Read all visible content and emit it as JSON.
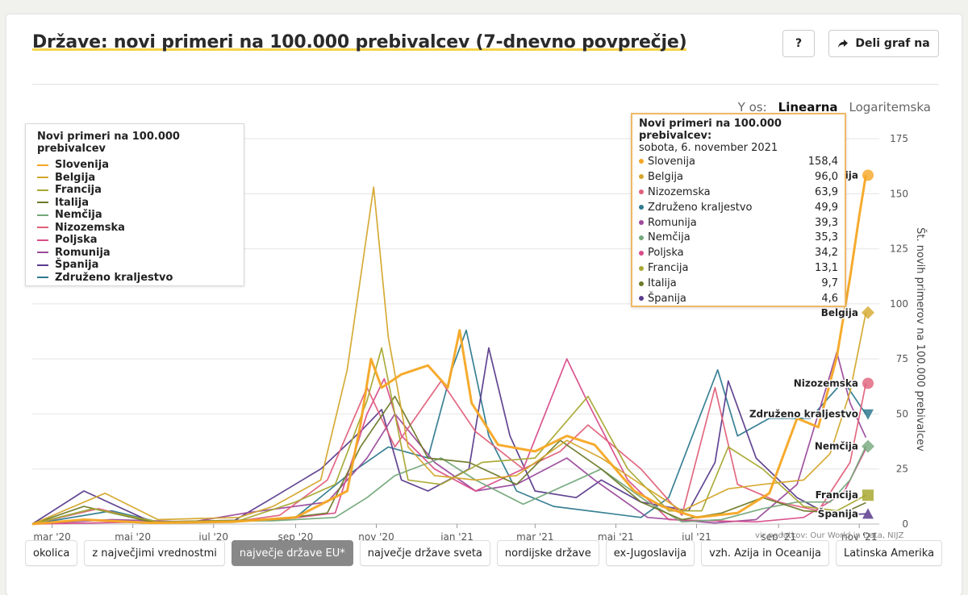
{
  "header": {
    "title": "Države: novi primeri na 100.000 prebivalcev (7-dnevno povprečje)",
    "help_label": "?",
    "share_label": "Deli graf na"
  },
  "yscale": {
    "label": "Y os:",
    "options": [
      "Linearna",
      "Logaritemska"
    ],
    "selected": "Linearna"
  },
  "legend": {
    "title": "Novi primeri na 100.000 prebivalcev",
    "items": [
      {
        "name": "Slovenija",
        "color": "#f5a623"
      },
      {
        "name": "Belgija",
        "color": "#d4a72c"
      },
      {
        "name": "Francija",
        "color": "#a8a833"
      },
      {
        "name": "Italija",
        "color": "#6f7a2a"
      },
      {
        "name": "Nemčija",
        "color": "#74a87a"
      },
      {
        "name": "Nizozemska",
        "color": "#e0607a"
      },
      {
        "name": "Poljska",
        "color": "#d84d8a"
      },
      {
        "name": "Romunija",
        "color": "#9b4a9c"
      },
      {
        "name": "Španija",
        "color": "#5a3b8c"
      },
      {
        "name": "Združeno kraljestvo",
        "color": "#2f7a8f"
      }
    ]
  },
  "tooltip": {
    "title": "Novi primeri na 100.000 prebivalcev:",
    "date": "sobota, 6. november 2021",
    "rows": [
      {
        "name": "Slovenija",
        "value": "158,4",
        "color": "#f5a623"
      },
      {
        "name": "Belgija",
        "value": "96,0",
        "color": "#d4a72c"
      },
      {
        "name": "Nizozemska",
        "value": "63,9",
        "color": "#e0607a"
      },
      {
        "name": "Združeno kraljestvo",
        "value": "49,9",
        "color": "#2f7a8f"
      },
      {
        "name": "Romunija",
        "value": "39,3",
        "color": "#9b4a9c"
      },
      {
        "name": "Nemčija",
        "value": "35,3",
        "color": "#74a87a"
      },
      {
        "name": "Poljska",
        "value": "34,2",
        "color": "#d84d8a"
      },
      {
        "name": "Francija",
        "value": "13,1",
        "color": "#a8a833"
      },
      {
        "name": "Italija",
        "value": "9,7",
        "color": "#6f7a2a"
      },
      {
        "name": "Španija",
        "value": "4,6",
        "color": "#5a3b8c"
      }
    ]
  },
  "source": "vir podatkov: Our World in Data, NIJZ",
  "chips": [
    "okolica",
    "z največjimi vrednostmi",
    "največje države EU*",
    "največje države sveta",
    "nordijske države",
    "ex-Jugoslavija",
    "vzh. Azija in Oceanija",
    "Latinska Amerika"
  ],
  "active_chip": "največje države EU*",
  "chart_data": {
    "type": "line",
    "ylabel": "Št. novih primerov na 100.000 prebivalcev",
    "ylim": [
      0,
      175
    ],
    "yticks": [
      0,
      25,
      50,
      75,
      100,
      125,
      150,
      175
    ],
    "xlim": [
      "2020-02-15",
      "2021-11-10"
    ],
    "xticks": [
      {
        "date": "2020-03-01",
        "label": "mar '20"
      },
      {
        "date": "2020-05-01",
        "label": "maj '20"
      },
      {
        "date": "2020-07-01",
        "label": "jul '20"
      },
      {
        "date": "2020-09-01",
        "label": "sep '20"
      },
      {
        "date": "2020-11-01",
        "label": "nov '20"
      },
      {
        "date": "2021-01-01",
        "label": "jan '21"
      },
      {
        "date": "2021-03-01",
        "label": "mar '21"
      },
      {
        "date": "2021-05-01",
        "label": "maj '21"
      },
      {
        "date": "2021-07-01",
        "label": "jul '21"
      },
      {
        "date": "2021-09-01",
        "label": "sep '21"
      },
      {
        "date": "2021-11-01",
        "label": "nov '21"
      }
    ],
    "end_labels": [
      {
        "name": "Slovenija",
        "value": 158.4,
        "marker": "circle"
      },
      {
        "name": "Belgija",
        "value": 96.0,
        "marker": "diamond"
      },
      {
        "name": "Nizozemska",
        "value": 63.9,
        "marker": "circle"
      },
      {
        "name": "Združeno kraljestvo",
        "value": 49.9,
        "marker": "triangle-down"
      },
      {
        "name": "Nemčija",
        "value": 35.3,
        "marker": "diamond"
      },
      {
        "name": "Francija",
        "value": 13.1,
        "marker": "square"
      },
      {
        "name": "Španija",
        "value": 4.6,
        "marker": "triangle-up"
      }
    ],
    "series": [
      {
        "name": "Slovenija",
        "color": "#f5a623",
        "points": [
          [
            "2020-02-15",
            0
          ],
          [
            "2020-03-25",
            2
          ],
          [
            "2020-05-15",
            0.5
          ],
          [
            "2020-07-15",
            1
          ],
          [
            "2020-09-01",
            3
          ],
          [
            "2020-10-10",
            15
          ],
          [
            "2020-10-20",
            45
          ],
          [
            "2020-10-28",
            75
          ],
          [
            "2020-11-05",
            62
          ],
          [
            "2020-11-20",
            68
          ],
          [
            "2020-12-10",
            72
          ],
          [
            "2020-12-25",
            62
          ],
          [
            "2021-01-03",
            88
          ],
          [
            "2021-01-12",
            55
          ],
          [
            "2021-02-01",
            36
          ],
          [
            "2021-03-01",
            33
          ],
          [
            "2021-03-25",
            40
          ],
          [
            "2021-04-15",
            36
          ],
          [
            "2021-05-15",
            15
          ],
          [
            "2021-06-05",
            8
          ],
          [
            "2021-07-01",
            3
          ],
          [
            "2021-08-01",
            5
          ],
          [
            "2021-08-25",
            14
          ],
          [
            "2021-09-15",
            48
          ],
          [
            "2021-10-01",
            44
          ],
          [
            "2021-10-15",
            76
          ],
          [
            "2021-10-25",
            112
          ],
          [
            "2021-11-01",
            140
          ],
          [
            "2021-11-06",
            158.4
          ]
        ]
      },
      {
        "name": "Belgija",
        "color": "#d4a72c",
        "points": [
          [
            "2020-02-15",
            0
          ],
          [
            "2020-04-10",
            14
          ],
          [
            "2020-05-20",
            2
          ],
          [
            "2020-07-20",
            3
          ],
          [
            "2020-08-15",
            8
          ],
          [
            "2020-09-20",
            20
          ],
          [
            "2020-10-10",
            70
          ],
          [
            "2020-10-30",
            153
          ],
          [
            "2020-11-10",
            85
          ],
          [
            "2020-11-25",
            35
          ],
          [
            "2020-12-15",
            22
          ],
          [
            "2021-01-15",
            20
          ],
          [
            "2021-02-15",
            22
          ],
          [
            "2021-03-25",
            38
          ],
          [
            "2021-04-20",
            30
          ],
          [
            "2021-05-20",
            18
          ],
          [
            "2021-06-20",
            6
          ],
          [
            "2021-07-25",
            16
          ],
          [
            "2021-08-20",
            18
          ],
          [
            "2021-09-20",
            20
          ],
          [
            "2021-10-10",
            32
          ],
          [
            "2021-10-25",
            60
          ],
          [
            "2021-11-06",
            96.0
          ]
        ]
      },
      {
        "name": "Francija",
        "color": "#a8a833",
        "points": [
          [
            "2020-02-15",
            0
          ],
          [
            "2020-04-01",
            7
          ],
          [
            "2020-05-20",
            1
          ],
          [
            "2020-07-20",
            1.5
          ],
          [
            "2020-09-01",
            10
          ],
          [
            "2020-10-01",
            18
          ],
          [
            "2020-10-25",
            56
          ],
          [
            "2020-11-05",
            80
          ],
          [
            "2020-11-25",
            20
          ],
          [
            "2020-12-20",
            18
          ],
          [
            "2021-01-20",
            28
          ],
          [
            "2021-03-01",
            30
          ],
          [
            "2021-04-10",
            58
          ],
          [
            "2021-05-10",
            25
          ],
          [
            "2021-06-10",
            6
          ],
          [
            "2021-07-05",
            6
          ],
          [
            "2021-07-25",
            35
          ],
          [
            "2021-08-20",
            25
          ],
          [
            "2021-09-20",
            8
          ],
          [
            "2021-10-15",
            6
          ],
          [
            "2021-11-06",
            13.1
          ]
        ]
      },
      {
        "name": "Italija",
        "color": "#6f7a2a",
        "points": [
          [
            "2020-02-15",
            0
          ],
          [
            "2020-03-25",
            8
          ],
          [
            "2020-05-15",
            1
          ],
          [
            "2020-08-15",
            2
          ],
          [
            "2020-09-25",
            5
          ],
          [
            "2020-10-20",
            35
          ],
          [
            "2020-11-15",
            58
          ],
          [
            "2020-12-10",
            30
          ],
          [
            "2021-01-10",
            28
          ],
          [
            "2021-02-15",
            18
          ],
          [
            "2021-03-20",
            38
          ],
          [
            "2021-04-20",
            25
          ],
          [
            "2021-05-20",
            10
          ],
          [
            "2021-06-20",
            2
          ],
          [
            "2021-07-20",
            5
          ],
          [
            "2021-08-20",
            12
          ],
          [
            "2021-09-20",
            6
          ],
          [
            "2021-10-20",
            5
          ],
          [
            "2021-11-06",
            9.7
          ]
        ]
      },
      {
        "name": "Nemčija",
        "color": "#74a87a",
        "points": [
          [
            "2020-02-15",
            0
          ],
          [
            "2020-04-01",
            7
          ],
          [
            "2020-05-15",
            1
          ],
          [
            "2020-08-15",
            1.5
          ],
          [
            "2020-10-01",
            3
          ],
          [
            "2020-10-25",
            12
          ],
          [
            "2020-11-15",
            22
          ],
          [
            "2020-12-20",
            30
          ],
          [
            "2021-01-15",
            20
          ],
          [
            "2021-02-20",
            9
          ],
          [
            "2021-04-20",
            25
          ],
          [
            "2021-05-25",
            10
          ],
          [
            "2021-06-20",
            1
          ],
          [
            "2021-07-20",
            2
          ],
          [
            "2021-08-20",
            7
          ],
          [
            "2021-09-15",
            10
          ],
          [
            "2021-10-10",
            10
          ],
          [
            "2021-10-25",
            20
          ],
          [
            "2021-11-06",
            35.3
          ]
        ]
      },
      {
        "name": "Nizozemska",
        "color": "#e0607a",
        "points": [
          [
            "2020-02-15",
            0
          ],
          [
            "2020-04-05",
            7
          ],
          [
            "2020-05-15",
            1
          ],
          [
            "2020-07-15",
            1
          ],
          [
            "2020-08-20",
            4
          ],
          [
            "2020-09-25",
            20
          ],
          [
            "2020-10-25",
            62
          ],
          [
            "2020-11-15",
            35
          ],
          [
            "2020-12-20",
            65
          ],
          [
            "2021-01-15",
            42
          ],
          [
            "2021-02-20",
            25
          ],
          [
            "2021-03-20",
            33
          ],
          [
            "2021-04-10",
            45
          ],
          [
            "2021-05-20",
            25
          ],
          [
            "2021-06-20",
            4
          ],
          [
            "2021-07-15",
            62
          ],
          [
            "2021-08-01",
            18
          ],
          [
            "2021-09-01",
            10
          ],
          [
            "2021-10-01",
            6
          ],
          [
            "2021-10-25",
            28
          ],
          [
            "2021-11-06",
            63.9
          ]
        ]
      },
      {
        "name": "Poljska",
        "color": "#d84d8a",
        "points": [
          [
            "2020-02-15",
            0
          ],
          [
            "2020-05-15",
            1
          ],
          [
            "2020-08-20",
            2
          ],
          [
            "2020-10-01",
            5
          ],
          [
            "2020-10-25",
            50
          ],
          [
            "2020-11-07",
            66
          ],
          [
            "2020-11-20",
            40
          ],
          [
            "2020-12-15",
            25
          ],
          [
            "2021-01-15",
            15
          ],
          [
            "2021-02-20",
            25
          ],
          [
            "2021-03-25",
            75
          ],
          [
            "2021-04-10",
            55
          ],
          [
            "2021-05-10",
            20
          ],
          [
            "2021-06-10",
            2
          ],
          [
            "2021-08-15",
            1
          ],
          [
            "2021-09-20",
            3
          ],
          [
            "2021-10-20",
            14
          ],
          [
            "2021-11-06",
            34.2
          ]
        ]
      },
      {
        "name": "Romunija",
        "color": "#9b4a9c",
        "points": [
          [
            "2020-02-15",
            0
          ],
          [
            "2020-04-15",
            2
          ],
          [
            "2020-06-15",
            1
          ],
          [
            "2020-07-25",
            5
          ],
          [
            "2020-09-25",
            10
          ],
          [
            "2020-10-25",
            30
          ],
          [
            "2020-11-15",
            50
          ],
          [
            "2020-12-15",
            28
          ],
          [
            "2021-01-15",
            15
          ],
          [
            "2021-02-15",
            18
          ],
          [
            "2021-03-25",
            30
          ],
          [
            "2021-04-15",
            20
          ],
          [
            "2021-05-25",
            3
          ],
          [
            "2021-07-15",
            0.5
          ],
          [
            "2021-08-15",
            2
          ],
          [
            "2021-09-15",
            18
          ],
          [
            "2021-10-15",
            78
          ],
          [
            "2021-10-25",
            55
          ],
          [
            "2021-11-06",
            39.3
          ]
        ]
      },
      {
        "name": "Španija",
        "color": "#5a3b8c",
        "points": [
          [
            "2020-02-15",
            0
          ],
          [
            "2020-03-25",
            15
          ],
          [
            "2020-05-15",
            1
          ],
          [
            "2020-07-15",
            1
          ],
          [
            "2020-08-15",
            12
          ],
          [
            "2020-09-20",
            25
          ],
          [
            "2020-10-20",
            42
          ],
          [
            "2020-11-05",
            52
          ],
          [
            "2020-11-20",
            20
          ],
          [
            "2020-12-10",
            15
          ],
          [
            "2021-01-10",
            25
          ],
          [
            "2021-01-25",
            80
          ],
          [
            "2021-02-10",
            40
          ],
          [
            "2021-03-01",
            15
          ],
          [
            "2021-04-01",
            12
          ],
          [
            "2021-04-20",
            20
          ],
          [
            "2021-05-20",
            10
          ],
          [
            "2021-06-25",
            6
          ],
          [
            "2021-07-15",
            28
          ],
          [
            "2021-07-25",
            65
          ],
          [
            "2021-08-15",
            30
          ],
          [
            "2021-09-15",
            12
          ],
          [
            "2021-10-10",
            4
          ],
          [
            "2021-11-06",
            4.6
          ]
        ]
      },
      {
        "name": "Združeno kraljestvo",
        "color": "#2f7a8f",
        "points": [
          [
            "2020-02-15",
            0
          ],
          [
            "2020-04-15",
            6
          ],
          [
            "2020-05-20",
            1
          ],
          [
            "2020-07-15",
            1
          ],
          [
            "2020-09-01",
            3
          ],
          [
            "2020-10-10",
            22
          ],
          [
            "2020-11-10",
            35
          ],
          [
            "2020-12-10",
            30
          ],
          [
            "2020-12-28",
            70
          ],
          [
            "2021-01-08",
            88
          ],
          [
            "2021-01-25",
            40
          ],
          [
            "2021-02-15",
            15
          ],
          [
            "2021-03-15",
            8
          ],
          [
            "2021-05-20",
            3
          ],
          [
            "2021-06-10",
            12
          ],
          [
            "2021-07-01",
            45
          ],
          [
            "2021-07-17",
            70
          ],
          [
            "2021-08-01",
            40
          ],
          [
            "2021-08-25",
            48
          ],
          [
            "2021-09-25",
            48
          ],
          [
            "2021-10-20",
            65
          ],
          [
            "2021-11-06",
            49.9
          ]
        ]
      }
    ]
  }
}
